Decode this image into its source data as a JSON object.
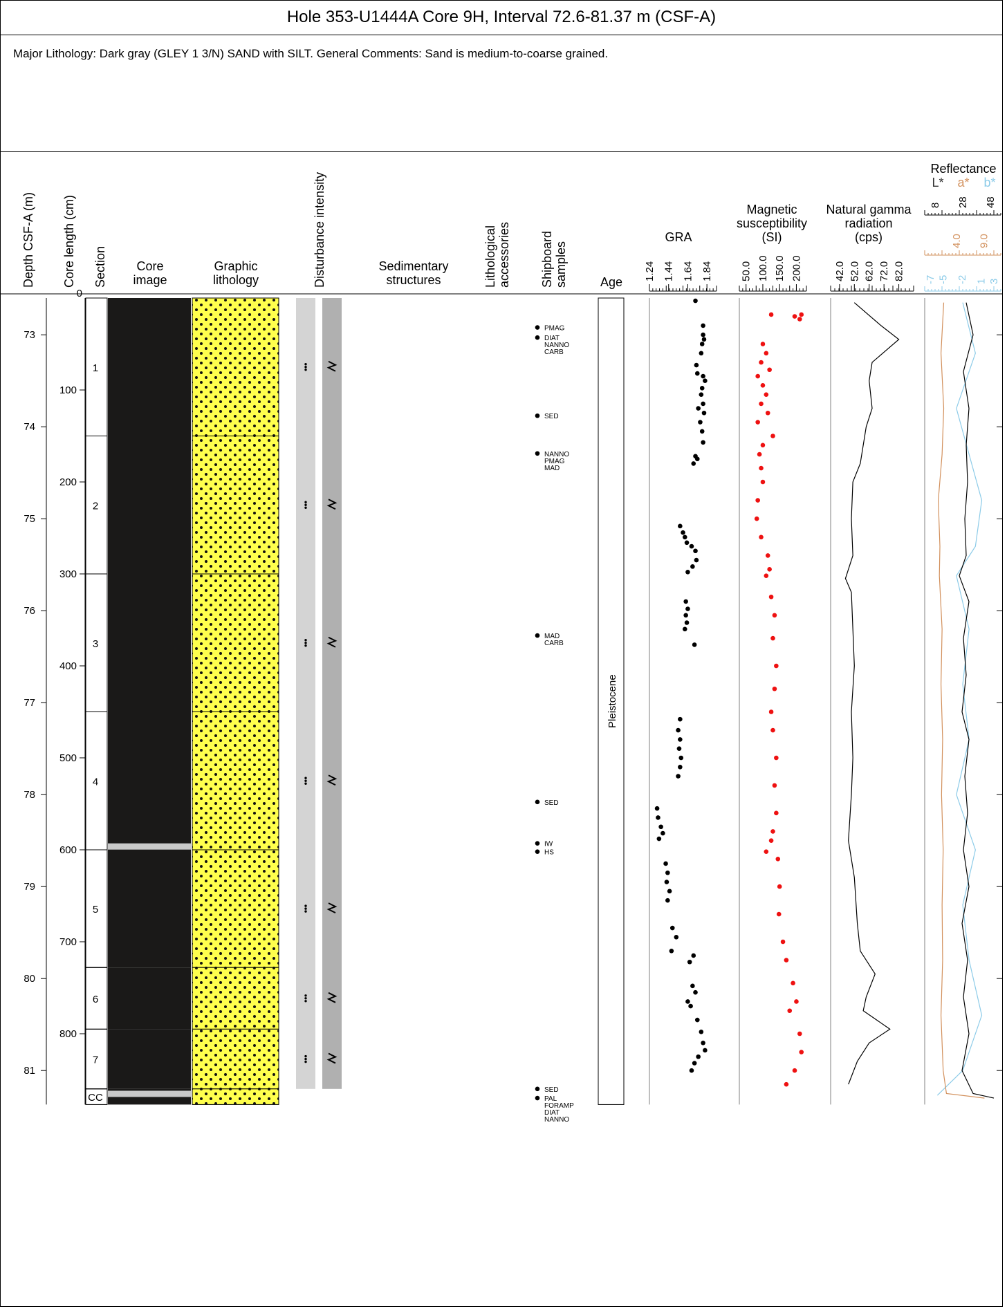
{
  "title": "Hole 353-U1444A Core 9H, Interval 72.6-81.37 m (CSF-A)",
  "summary": "Major Lithology: Dark gray (GLEY 1 3/N) SAND with SILT. General Comments: Sand is medium-to-coarse grained.",
  "headers": {
    "depth": "Depth CSF-A (m)",
    "core_length": "Core length (cm)",
    "section": "Section",
    "core_image_1": "Core",
    "core_image_2": "image",
    "graphic_1": "Graphic",
    "graphic_2": "lithology",
    "disturbance": "Disturbance intensity",
    "sed_1": "Sedimentary",
    "sed_2": "structures",
    "lith_acc_1": "Lithological",
    "lith_acc_2": "accessories",
    "shipboard_1": "Shipboard",
    "shipboard_2": "samples",
    "age": "Age",
    "gra": "GRA",
    "ms_1": "Magnetic",
    "ms_2": "susceptibility",
    "ms_3": "(SI)",
    "ngr_1": "Natural gamma",
    "ngr_2": "radiation",
    "ngr_3": "(cps)",
    "refl": "Reflectance",
    "refl_L": "L*",
    "refl_a": "a*",
    "refl_b": "b*"
  },
  "axes": {
    "depth_ticks": [
      "73",
      "74",
      "75",
      "76",
      "77",
      "78",
      "79",
      "80",
      "81"
    ],
    "length_ticks": [
      "100",
      "200",
      "300",
      "400",
      "500",
      "600",
      "700",
      "800"
    ],
    "length_top_partial": "0",
    "gra_ticks": [
      "1.24",
      "1.44",
      "1.64",
      "1.84"
    ],
    "ms_ticks": [
      "50.0",
      "100.0",
      "150.0",
      "200.0"
    ],
    "ngr_ticks": [
      "42.0",
      "52.0",
      "62.0",
      "72.0",
      "82.0"
    ],
    "L_ticks": [
      "8",
      "28",
      "48"
    ],
    "a_ticks": [
      "4.0",
      "9.0"
    ],
    "b_ticks": [
      "-7",
      "-5",
      "-2",
      "1",
      "3"
    ]
  },
  "sections": [
    {
      "label": "1",
      "top": 72.6,
      "bottom": 74.1
    },
    {
      "label": "2",
      "top": 74.1,
      "bottom": 75.6
    },
    {
      "label": "3",
      "top": 75.6,
      "bottom": 77.1
    },
    {
      "label": "4",
      "top": 77.1,
      "bottom": 78.6
    },
    {
      "label": "5",
      "top": 78.6,
      "bottom": 79.88
    },
    {
      "label": "6",
      "top": 79.88,
      "bottom": 80.55
    },
    {
      "label": "7",
      "top": 80.55,
      "bottom": 81.2
    },
    {
      "label": "CC",
      "top": 81.2,
      "bottom": 81.37
    }
  ],
  "samples": [
    {
      "depth": 72.92,
      "labels": [
        "PMAG"
      ]
    },
    {
      "depth": 73.03,
      "labels": [
        "DIAT",
        "NANNO",
        "CARB"
      ]
    },
    {
      "depth": 73.88,
      "labels": [
        "SED"
      ]
    },
    {
      "depth": 74.29,
      "labels": [
        "NANNO",
        "PMAG",
        "MAD"
      ]
    },
    {
      "depth": 76.27,
      "labels": [
        "MAD",
        "CARB"
      ]
    },
    {
      "depth": 78.08,
      "labels": [
        "SED"
      ]
    },
    {
      "depth": 78.53,
      "labels": [
        "IW"
      ]
    },
    {
      "depth": 78.62,
      "labels": [
        "HS"
      ]
    },
    {
      "depth": 81.2,
      "labels": [
        "SED"
      ]
    },
    {
      "depth": 81.3,
      "labels": [
        "PAL",
        "FORAMP",
        "DIAT",
        "NANNO"
      ]
    }
  ],
  "age_label": "Pleistocene",
  "colors": {
    "lithology_fill": "#ffff4d",
    "ms_points": "#ee1111",
    "gra_points": "#000000",
    "a_star": "#d2905c",
    "b_star": "#8ccbe8",
    "disturbance_light": "#d4d4d4",
    "disturbance_dark": "#b0b0b0",
    "core_dark": "#1a1918"
  },
  "chart_data": [
    {
      "type": "scatter",
      "name": "GRA",
      "xlim": [
        1.24,
        1.94
      ],
      "ylim": [
        72.6,
        81.37
      ],
      "points": [
        [
          1.72,
          72.63
        ],
        [
          1.8,
          72.9
        ],
        [
          1.8,
          73.0
        ],
        [
          1.81,
          73.05
        ],
        [
          1.79,
          73.1
        ],
        [
          1.78,
          73.2
        ],
        [
          1.73,
          73.33
        ],
        [
          1.74,
          73.42
        ],
        [
          1.8,
          73.45
        ],
        [
          1.82,
          73.5
        ],
        [
          1.79,
          73.58
        ],
        [
          1.78,
          73.65
        ],
        [
          1.8,
          73.75
        ],
        [
          1.75,
          73.8
        ],
        [
          1.81,
          73.85
        ],
        [
          1.77,
          73.95
        ],
        [
          1.79,
          74.05
        ],
        [
          1.8,
          74.17
        ],
        [
          1.72,
          74.32
        ],
        [
          1.74,
          74.35
        ],
        [
          1.7,
          74.4
        ],
        [
          1.56,
          75.08
        ],
        [
          1.59,
          75.15
        ],
        [
          1.61,
          75.2
        ],
        [
          1.63,
          75.26
        ],
        [
          1.68,
          75.3
        ],
        [
          1.72,
          75.35
        ],
        [
          1.73,
          75.45
        ],
        [
          1.69,
          75.52
        ],
        [
          1.64,
          75.58
        ],
        [
          1.62,
          75.9
        ],
        [
          1.64,
          75.98
        ],
        [
          1.62,
          76.05
        ],
        [
          1.63,
          76.13
        ],
        [
          1.61,
          76.2
        ],
        [
          1.71,
          76.37
        ],
        [
          1.56,
          77.18
        ],
        [
          1.54,
          77.3
        ],
        [
          1.56,
          77.4
        ],
        [
          1.55,
          77.5
        ],
        [
          1.57,
          77.6
        ],
        [
          1.56,
          77.7
        ],
        [
          1.54,
          77.8
        ],
        [
          1.32,
          78.15
        ],
        [
          1.33,
          78.25
        ],
        [
          1.36,
          78.35
        ],
        [
          1.38,
          78.42
        ],
        [
          1.34,
          78.48
        ],
        [
          1.41,
          78.75
        ],
        [
          1.43,
          78.85
        ],
        [
          1.42,
          78.95
        ],
        [
          1.45,
          79.05
        ],
        [
          1.43,
          79.15
        ],
        [
          1.48,
          79.45
        ],
        [
          1.52,
          79.55
        ],
        [
          1.47,
          79.7
        ],
        [
          1.7,
          79.75
        ],
        [
          1.66,
          79.82
        ],
        [
          1.69,
          80.08
        ],
        [
          1.72,
          80.15
        ],
        [
          1.64,
          80.25
        ],
        [
          1.67,
          80.3
        ],
        [
          1.74,
          80.45
        ],
        [
          1.78,
          80.58
        ],
        [
          1.8,
          80.7
        ],
        [
          1.82,
          80.78
        ],
        [
          1.75,
          80.85
        ],
        [
          1.71,
          80.92
        ],
        [
          1.68,
          81.0
        ]
      ]
    },
    {
      "type": "scatter",
      "name": "Magnetic susceptibility",
      "xlim": [
        30,
        230
      ],
      "ylim": [
        72.6,
        81.37
      ],
      "points": [
        [
          125,
          72.78
        ],
        [
          210,
          72.83
        ],
        [
          195,
          72.8
        ],
        [
          215,
          72.78
        ],
        [
          100,
          73.1
        ],
        [
          110,
          73.2
        ],
        [
          95,
          73.3
        ],
        [
          120,
          73.38
        ],
        [
          85,
          73.45
        ],
        [
          100,
          73.55
        ],
        [
          110,
          73.65
        ],
        [
          95,
          73.75
        ],
        [
          115,
          73.85
        ],
        [
          85,
          73.95
        ],
        [
          130,
          74.1
        ],
        [
          100,
          74.2
        ],
        [
          90,
          74.3
        ],
        [
          95,
          74.45
        ],
        [
          100,
          74.6
        ],
        [
          85,
          74.8
        ],
        [
          82,
          75.0
        ],
        [
          95,
          75.2
        ],
        [
          115,
          75.4
        ],
        [
          120,
          75.55
        ],
        [
          110,
          75.62
        ],
        [
          125,
          75.85
        ],
        [
          135,
          76.05
        ],
        [
          130,
          76.3
        ],
        [
          140,
          76.6
        ],
        [
          135,
          76.85
        ],
        [
          125,
          77.1
        ],
        [
          130,
          77.3
        ],
        [
          140,
          77.6
        ],
        [
          135,
          77.9
        ],
        [
          140,
          78.2
        ],
        [
          130,
          78.4
        ],
        [
          125,
          78.5
        ],
        [
          110,
          78.62
        ],
        [
          145,
          78.7
        ],
        [
          150,
          79.0
        ],
        [
          148,
          79.3
        ],
        [
          160,
          79.6
        ],
        [
          170,
          79.8
        ],
        [
          190,
          80.05
        ],
        [
          200,
          80.25
        ],
        [
          180,
          80.35
        ],
        [
          210,
          80.6
        ],
        [
          215,
          80.8
        ],
        [
          195,
          81.0
        ],
        [
          170,
          81.15
        ]
      ]
    },
    {
      "type": "line",
      "name": "Natural gamma radiation",
      "xlim": [
        36,
        92
      ],
      "ylim": [
        72.6,
        81.37
      ],
      "points": [
        [
          52,
          72.65
        ],
        [
          70,
          72.9
        ],
        [
          82,
          73.05
        ],
        [
          64,
          73.3
        ],
        [
          62,
          73.5
        ],
        [
          64,
          73.8
        ],
        [
          60,
          74.0
        ],
        [
          56,
          74.4
        ],
        [
          51,
          74.6
        ],
        [
          50,
          75.0
        ],
        [
          51,
          75.4
        ],
        [
          46,
          75.65
        ],
        [
          50,
          75.8
        ],
        [
          51,
          76.2
        ],
        [
          52,
          76.6
        ],
        [
          50,
          77.1
        ],
        [
          51,
          77.6
        ],
        [
          50,
          78.0
        ],
        [
          48,
          78.5
        ],
        [
          52,
          78.9
        ],
        [
          54,
          79.4
        ],
        [
          56,
          79.7
        ],
        [
          66,
          79.95
        ],
        [
          60,
          80.2
        ],
        [
          58,
          80.35
        ],
        [
          76,
          80.55
        ],
        [
          62,
          80.7
        ],
        [
          54,
          80.9
        ],
        [
          48,
          81.15
        ]
      ]
    },
    {
      "type": "line",
      "name": "L*",
      "xlim": [
        0,
        55
      ],
      "ylim": [
        72.6,
        81.37
      ],
      "points": [
        [
          30,
          72.65
        ],
        [
          35,
          73.0
        ],
        [
          28,
          73.4
        ],
        [
          32,
          73.8
        ],
        [
          30,
          74.2
        ],
        [
          31,
          74.6
        ],
        [
          29,
          75.0
        ],
        [
          30,
          75.4
        ],
        [
          25,
          75.62
        ],
        [
          32,
          75.9
        ],
        [
          28,
          76.3
        ],
        [
          30,
          76.7
        ],
        [
          27,
          77.1
        ],
        [
          32,
          77.4
        ],
        [
          29,
          77.8
        ],
        [
          31,
          78.2
        ],
        [
          28,
          78.6
        ],
        [
          32,
          79.0
        ],
        [
          27,
          79.4
        ],
        [
          31,
          79.8
        ],
        [
          28,
          80.2
        ],
        [
          32,
          80.6
        ],
        [
          27,
          81.0
        ],
        [
          35,
          81.25
        ],
        [
          50,
          81.3
        ]
      ]
    },
    {
      "type": "line",
      "name": "a*",
      "xlim": [
        -2,
        12
      ],
      "ylim": [
        72.6,
        81.37
      ],
      "points": [
        [
          1.5,
          72.65
        ],
        [
          1.0,
          73.2
        ],
        [
          1.5,
          73.8
        ],
        [
          1.2,
          74.3
        ],
        [
          0.5,
          74.8
        ],
        [
          0.8,
          75.3
        ],
        [
          0.7,
          75.62
        ],
        [
          1.2,
          76.2
        ],
        [
          1.0,
          76.8
        ],
        [
          1.3,
          77.4
        ],
        [
          1.1,
          78.0
        ],
        [
          1.4,
          78.6
        ],
        [
          1.2,
          79.2
        ],
        [
          1.3,
          79.8
        ],
        [
          1.0,
          80.4
        ],
        [
          1.4,
          81.0
        ],
        [
          2.0,
          81.25
        ],
        [
          9.0,
          81.3
        ]
      ]
    },
    {
      "type": "line",
      "name": "b*",
      "xlim": [
        -8,
        4
      ],
      "ylim": [
        72.6,
        81.37
      ],
      "points": [
        [
          -2,
          72.65
        ],
        [
          0,
          73.2
        ],
        [
          -3,
          73.8
        ],
        [
          -1,
          74.3
        ],
        [
          1,
          74.8
        ],
        [
          0,
          75.3
        ],
        [
          -3,
          75.62
        ],
        [
          -1,
          76.2
        ],
        [
          -2,
          76.8
        ],
        [
          -1,
          77.4
        ],
        [
          -3,
          78.0
        ],
        [
          0,
          78.6
        ],
        [
          -2,
          79.2
        ],
        [
          -1,
          79.8
        ],
        [
          1,
          80.4
        ],
        [
          -2,
          81.0
        ],
        [
          -6,
          81.27
        ]
      ]
    }
  ]
}
